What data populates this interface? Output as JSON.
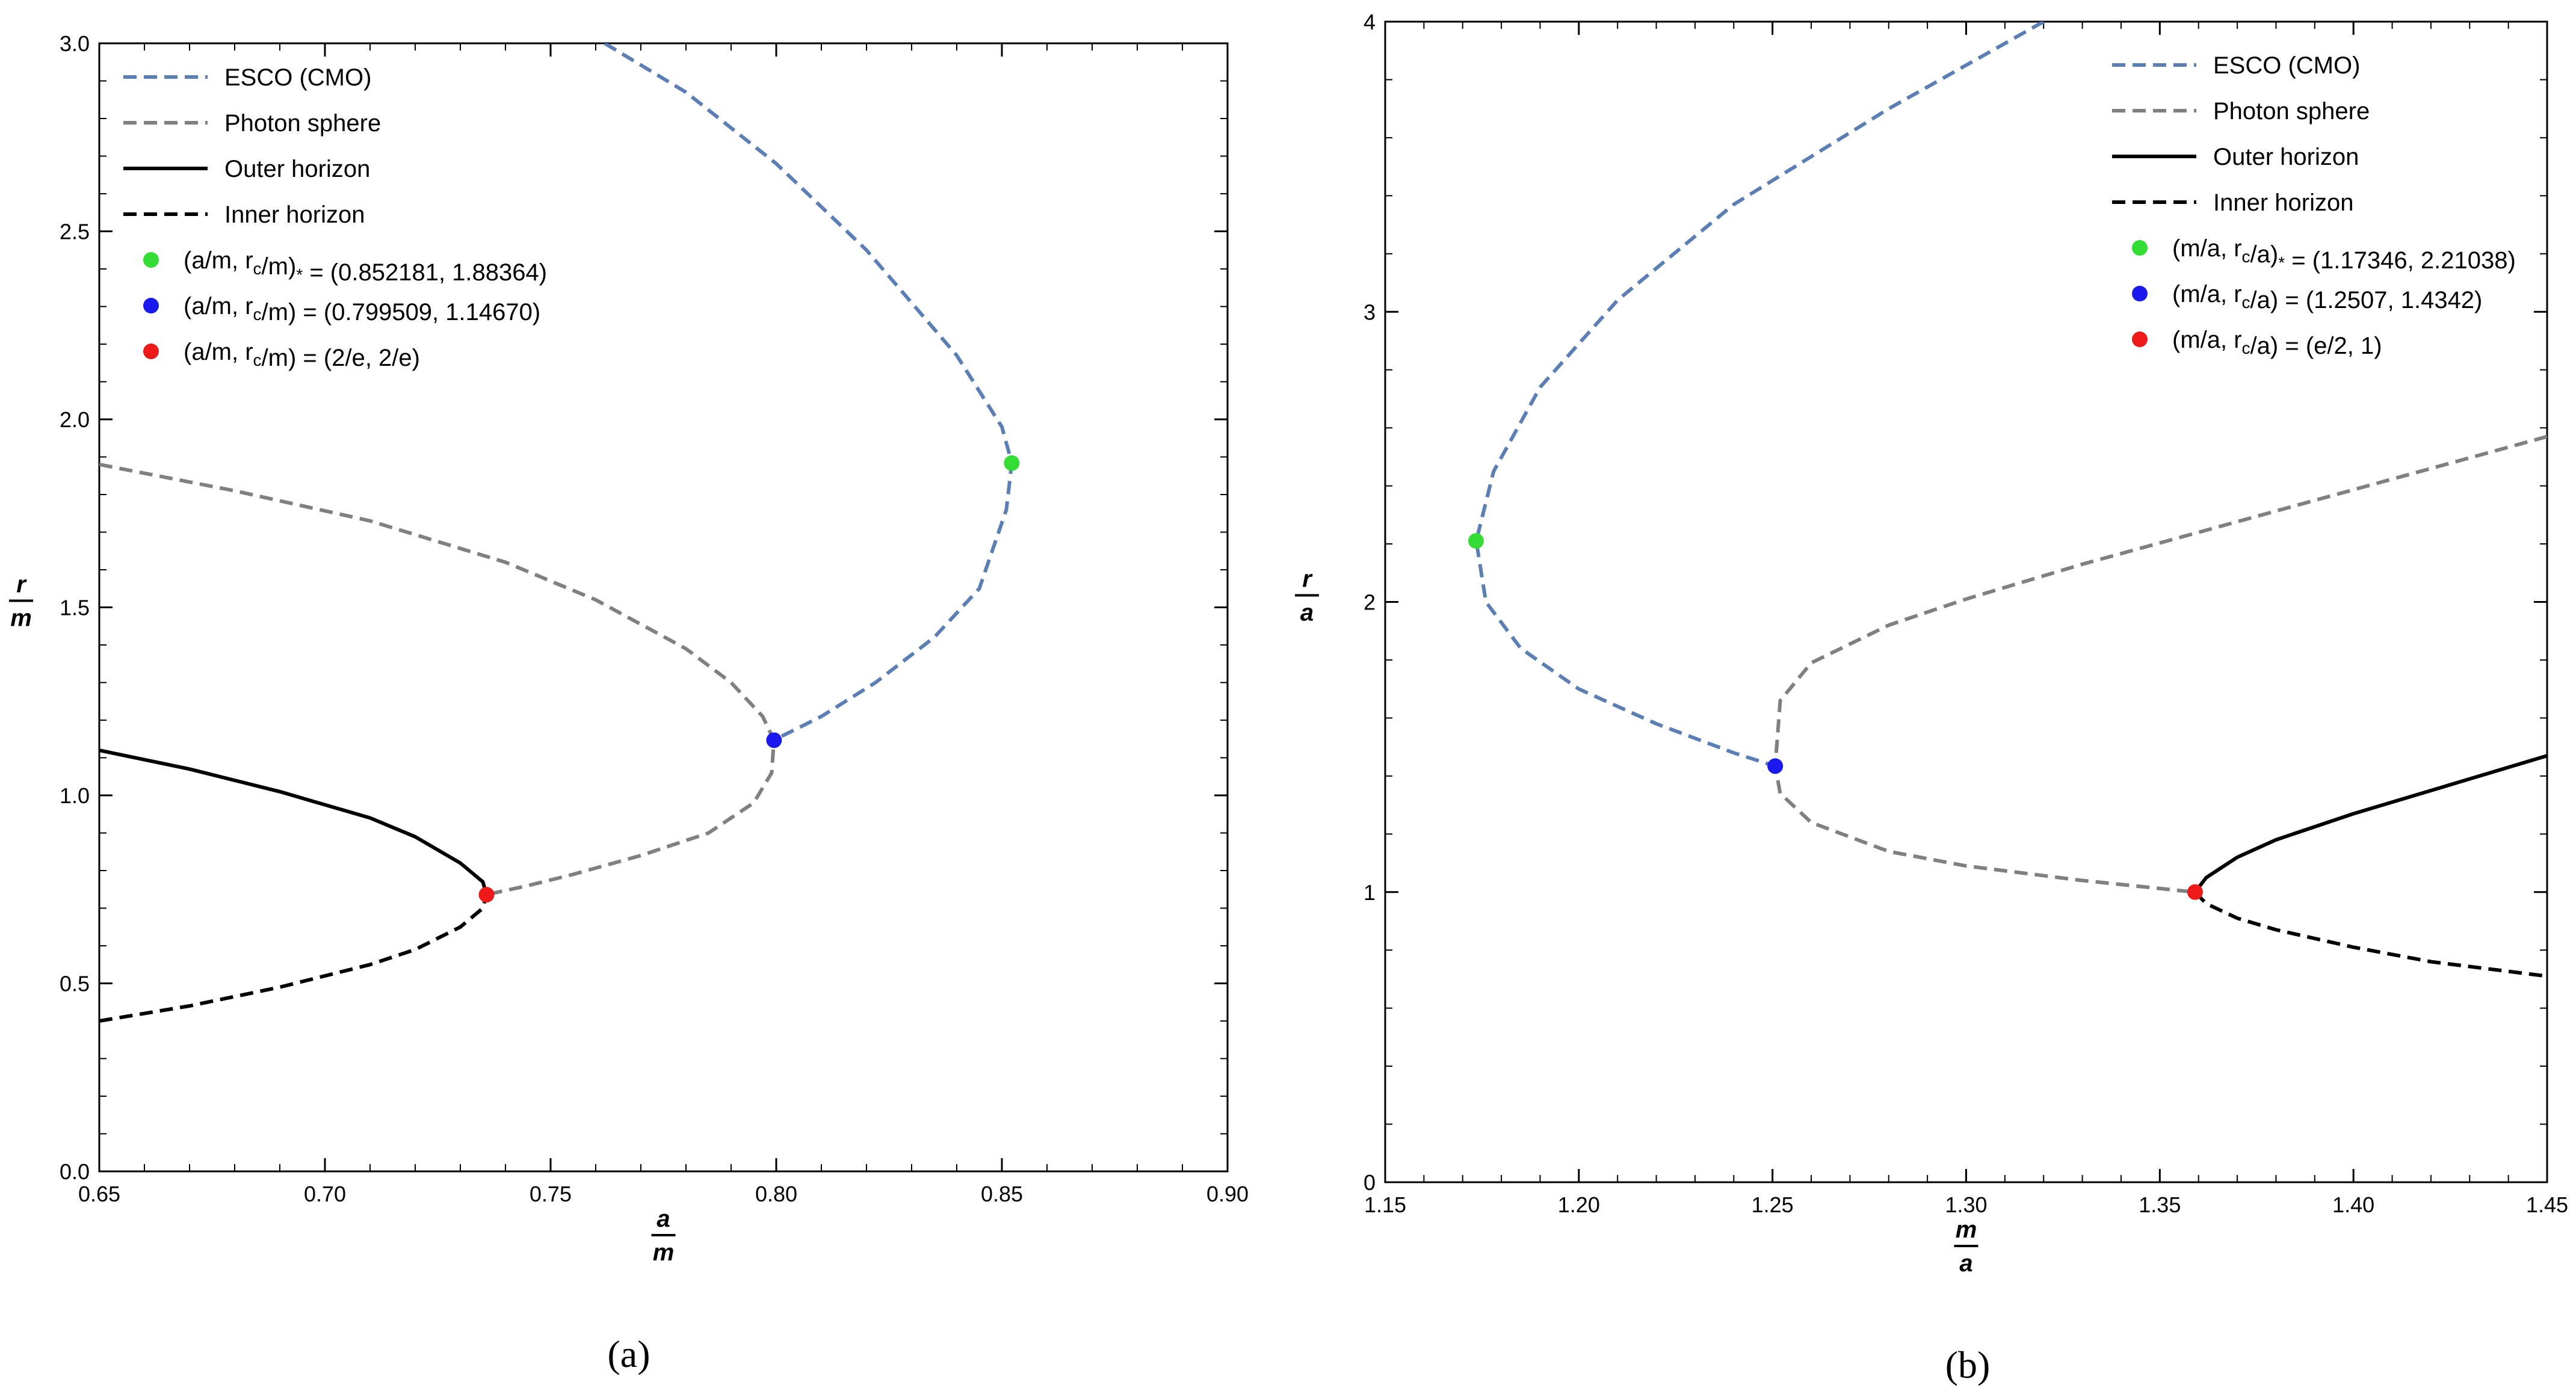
{
  "chart_data": [
    {
      "type": "line",
      "caption": "(a)",
      "xlabel": {
        "num": "a",
        "den": "m"
      },
      "ylabel": {
        "num": "r",
        "den": "m"
      },
      "xlim": [
        0.65,
        0.9
      ],
      "ylim": [
        0.0,
        3.0
      ],
      "xticks": [
        "0.65",
        "0.70",
        "0.75",
        "0.80",
        "0.85",
        "0.90"
      ],
      "yticks": [
        "0.0",
        "0.5",
        "1.0",
        "1.5",
        "2.0",
        "2.5",
        "3.0"
      ],
      "grid": false,
      "legend_position": "top-left",
      "series": [
        {
          "name": "ESCO (CMO)",
          "color": "#5b7fb5",
          "dash": "dashed",
          "x": [
            0.762,
            0.78,
            0.8,
            0.82,
            0.84,
            0.85,
            0.8522,
            0.851,
            0.845,
            0.835,
            0.822,
            0.81,
            0.7995
          ],
          "y": [
            3.0,
            2.87,
            2.68,
            2.45,
            2.17,
            1.98,
            1.884,
            1.76,
            1.55,
            1.42,
            1.3,
            1.21,
            1.147
          ]
        },
        {
          "name": "Photon sphere",
          "color": "#808080",
          "dash": "dashed",
          "x": [
            0.65,
            0.68,
            0.71,
            0.74,
            0.76,
            0.78,
            0.79,
            0.797,
            0.7995,
            0.799,
            0.795,
            0.785,
            0.77,
            0.755,
            0.745,
            0.7358
          ],
          "y": [
            1.88,
            1.81,
            1.73,
            1.62,
            1.52,
            1.39,
            1.3,
            1.21,
            1.147,
            1.06,
            0.98,
            0.9,
            0.84,
            0.79,
            0.76,
            0.736
          ]
        },
        {
          "name": "Outer horizon",
          "color": "#000000",
          "dash": "solid",
          "x": [
            0.65,
            0.67,
            0.69,
            0.71,
            0.72,
            0.73,
            0.735,
            0.7358
          ],
          "y": [
            1.12,
            1.07,
            1.01,
            0.94,
            0.89,
            0.82,
            0.77,
            0.736
          ]
        },
        {
          "name": "Inner horizon",
          "color": "#000000",
          "dash": "dashed",
          "x": [
            0.65,
            0.67,
            0.69,
            0.71,
            0.72,
            0.73,
            0.735,
            0.7358
          ],
          "y": [
            0.4,
            0.44,
            0.49,
            0.55,
            0.59,
            0.65,
            0.7,
            0.736
          ]
        }
      ],
      "points": [
        {
          "label": "(a/m, r",
          "sub": "c",
          "label_rest": "/m)",
          "sub2": "*",
          "value_text": " = (0.852181, 1.88364)",
          "x": 0.852181,
          "y": 1.88364,
          "color": "#33dd33"
        },
        {
          "label": "(a/m, r",
          "sub": "c",
          "label_rest": "/m)",
          "sub2": "",
          "value_text": " = (0.799509, 1.14670)",
          "x": 0.799509,
          "y": 1.1467,
          "color": "#1a1aee"
        },
        {
          "label": "(a/m, r",
          "sub": "c",
          "label_rest": "/m)",
          "sub2": "",
          "value_text": " = (2/e, 2/e)",
          "x": 0.7358,
          "y": 0.7358,
          "color": "#ee1a1a"
        }
      ]
    },
    {
      "type": "line",
      "caption": "(b)",
      "xlabel": {
        "num": "m",
        "den": "a"
      },
      "ylabel": {
        "num": "r",
        "den": "a"
      },
      "xlim": [
        1.15,
        1.45
      ],
      "ylim": [
        0,
        4
      ],
      "xticks": [
        "1.15",
        "1.20",
        "1.25",
        "1.30",
        "1.35",
        "1.40",
        "1.45"
      ],
      "yticks": [
        "0",
        "1",
        "2",
        "3",
        "4"
      ],
      "grid": false,
      "legend_position": "top-right",
      "series": [
        {
          "name": "ESCO (CMO)",
          "color": "#5b7fb5",
          "dash": "dashed",
          "x": [
            1.32,
            1.28,
            1.24,
            1.21,
            1.19,
            1.178,
            1.1735,
            1.176,
            1.185,
            1.2,
            1.22,
            1.24,
            1.2507
          ],
          "y": [
            4.0,
            3.7,
            3.37,
            3.04,
            2.74,
            2.45,
            2.21,
            2.0,
            1.84,
            1.7,
            1.58,
            1.48,
            1.434
          ]
        },
        {
          "name": "Photon sphere",
          "color": "#808080",
          "dash": "dashed",
          "x": [
            1.45,
            1.42,
            1.39,
            1.36,
            1.33,
            1.3,
            1.28,
            1.26,
            1.252,
            1.2507,
            1.252,
            1.26,
            1.28,
            1.3,
            1.33,
            1.3591
          ],
          "y": [
            2.57,
            2.46,
            2.35,
            2.24,
            2.13,
            2.01,
            1.92,
            1.79,
            1.66,
            1.434,
            1.34,
            1.24,
            1.14,
            1.09,
            1.04,
            1.0
          ]
        },
        {
          "name": "Outer horizon",
          "color": "#000000",
          "dash": "solid",
          "x": [
            1.3591,
            1.362,
            1.37,
            1.38,
            1.4,
            1.42,
            1.45
          ],
          "y": [
            1.0,
            1.05,
            1.12,
            1.18,
            1.27,
            1.35,
            1.47
          ]
        },
        {
          "name": "Inner horizon",
          "color": "#000000",
          "dash": "dashed",
          "x": [
            1.3591,
            1.362,
            1.37,
            1.38,
            1.4,
            1.42,
            1.45
          ],
          "y": [
            1.0,
            0.96,
            0.91,
            0.87,
            0.81,
            0.76,
            0.71
          ]
        }
      ],
      "points": [
        {
          "label": "(m/a, r",
          "sub": "c",
          "label_rest": "/a)",
          "sub2": "*",
          "value_text": " = (1.17346, 2.21038)",
          "x": 1.17346,
          "y": 2.21038,
          "color": "#33dd33"
        },
        {
          "label": "(m/a, r",
          "sub": "c",
          "label_rest": "/a)",
          "sub2": "",
          "value_text": " = (1.2507, 1.4342)",
          "x": 1.2507,
          "y": 1.4342,
          "color": "#1a1aee"
        },
        {
          "label": "(m/a, r",
          "sub": "c",
          "label_rest": "/a)",
          "sub2": "",
          "value_text": " = (e/2, 1)",
          "x": 1.3591,
          "y": 1.0,
          "color": "#ee1a1a"
        }
      ]
    }
  ]
}
